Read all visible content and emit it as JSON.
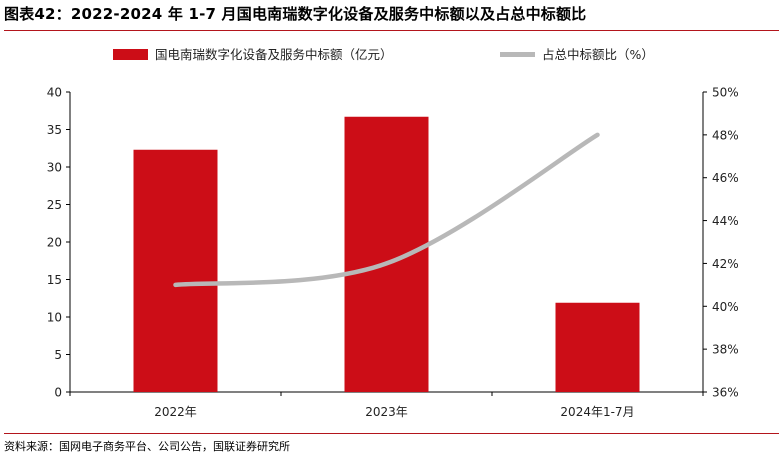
{
  "title": "图表42：2022-2024 年 1-7 月国电南瑞数字化设备及服务中标额以及占总中标额比",
  "source": "资料来源：国网电子商务平台、公司公告，国联证券研究所",
  "colors": {
    "bar": "#cc0d17",
    "line": "#b8b8b8",
    "rule": "#b3151c"
  },
  "chart_data": {
    "type": "bar",
    "categories": [
      "2022年",
      "2023年",
      "2024年1-7月"
    ],
    "series": [
      {
        "name": "国电南瑞数字化设备及服务中标额（亿元）",
        "type": "bar",
        "axis": "left",
        "values": [
          32.3,
          36.7,
          11.9
        ]
      },
      {
        "name": "占总中标额比（%）",
        "type": "line",
        "axis": "right",
        "values": [
          41.0,
          42.0,
          48.0
        ]
      }
    ],
    "y_left": {
      "min": 0,
      "max": 40,
      "ticks": [
        "0",
        "5",
        "10",
        "15",
        "20",
        "25",
        "30",
        "35",
        "40"
      ]
    },
    "y_right": {
      "min": 36,
      "max": 50,
      "ticks": [
        "36%",
        "38%",
        "40%",
        "42%",
        "44%",
        "46%",
        "48%",
        "50%"
      ]
    },
    "grid": false,
    "legend_position": "top"
  }
}
